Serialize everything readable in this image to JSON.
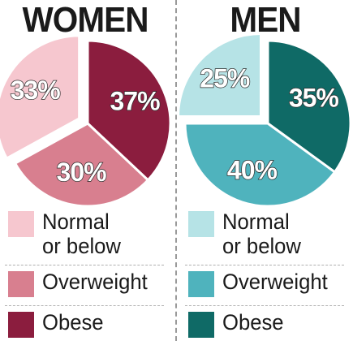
{
  "chart_data": [
    {
      "type": "pie",
      "title": "WOMEN",
      "slices": [
        {
          "label": "Normal or below",
          "value": 33,
          "value_label": "33%",
          "color": "#f6c7cf",
          "exploded": true
        },
        {
          "label": "Obese",
          "value": 37,
          "value_label": "37%",
          "color": "#8b1d3e",
          "exploded": false
        },
        {
          "label": "Overweight",
          "value": 30,
          "value_label": "30%",
          "color": "#d87f8f",
          "exploded": false
        }
      ]
    },
    {
      "type": "pie",
      "title": "MEN",
      "slices": [
        {
          "label": "Normal or below",
          "value": 25,
          "value_label": "25%",
          "color": "#b6e3e6",
          "exploded": true
        },
        {
          "label": "Obese",
          "value": 35,
          "value_label": "35%",
          "color": "#0f6a66",
          "exploded": false
        },
        {
          "label": "Overweight",
          "value": 40,
          "value_label": "40%",
          "color": "#4fb3bd",
          "exploded": false
        }
      ]
    }
  ],
  "legend": {
    "women": [
      {
        "label": "Normal\nor below",
        "color": "#f6c7cf"
      },
      {
        "label": "Overweight",
        "color": "#d87f8f"
      },
      {
        "label": "Obese",
        "color": "#8b1d3e"
      }
    ],
    "men": [
      {
        "label": "Normal\nor below",
        "color": "#b6e3e6"
      },
      {
        "label": "Overweight",
        "color": "#4fb3bd"
      },
      {
        "label": "Obese",
        "color": "#0f6a66"
      }
    ]
  }
}
